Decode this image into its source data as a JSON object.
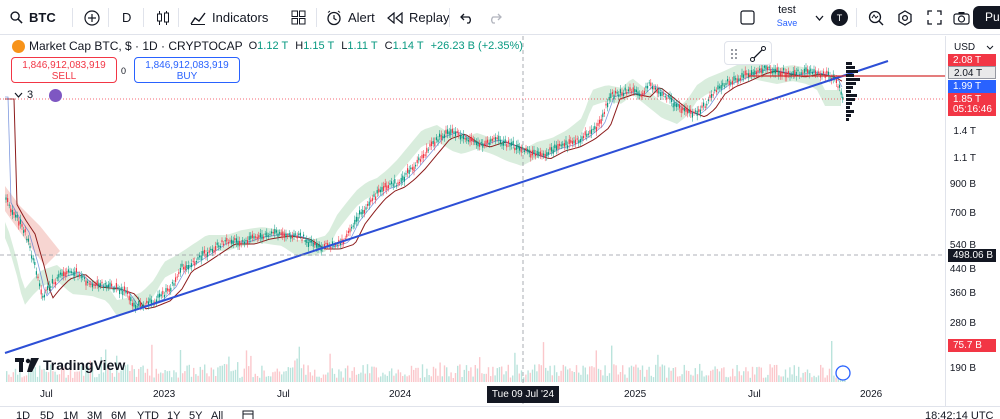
{
  "toolbar": {
    "symbol": "BTC",
    "interval": "D",
    "indicators_label": "Indicators",
    "alert_label": "Alert",
    "replay_label": "Replay",
    "layout_name": "test",
    "save_label": "Save",
    "avatar_letter": "T",
    "publish_label": "Pu"
  },
  "legend": {
    "title": "Market Cap BTC, $ · 1D · CRYPTOCAP",
    "open_label": "O",
    "open": "1.12 T",
    "high_label": "H",
    "high": "1.15 T",
    "low_label": "L",
    "low": "1.11 T",
    "close_label": "C",
    "close": "1.14 T",
    "change": "+26.23 B (+2.35%)"
  },
  "trade": {
    "sell_price": "1,846,912,083,919",
    "sell_label": "SELL",
    "spread": "0",
    "buy_price": "1,846,912,083,919",
    "buy_label": "BUY"
  },
  "indicators_count": "3",
  "price_axis": {
    "currency": "USD",
    "ticks": [
      "1.4 T",
      "1.1 T",
      "900 B",
      "700 B",
      "540 B",
      "440 B",
      "360 B",
      "280 B",
      "190 B"
    ],
    "labels": {
      "top": "2.08 T",
      "line_level": "2.04 T",
      "trendline": "1.99 T",
      "last_price": "1.85 T",
      "countdown": "05:16:46",
      "crosshair": "498.06 B",
      "volume": "75.7 B"
    }
  },
  "time_axis": {
    "labels": [
      "Jul",
      "2023",
      "Jul",
      "2024",
      "2025",
      "Jul",
      "2026"
    ],
    "cursor": "Tue 09 Jul '24"
  },
  "bottom": {
    "ranges": [
      "1D",
      "5D",
      "1M",
      "3M",
      "6M",
      "YTD",
      "1Y",
      "5Y",
      "All"
    ],
    "clock": "18:42:14 UTC"
  },
  "logo_text": "TradingView",
  "colors": {
    "up": "#089981",
    "down": "#f23645",
    "accent": "#2962ff",
    "trendline": "#2d4fd6",
    "cloud_bull": "#cfe8d4",
    "cloud_bear": "#f6d0cc"
  },
  "icons": [
    "search-icon",
    "add-symbol-icon",
    "candles-icon",
    "indicators-icon",
    "layouts-icon",
    "alert-icon",
    "replay-icon",
    "undo-icon",
    "redo-icon",
    "fullscreen-square-icon",
    "chevron-down-icon",
    "loupe-icon",
    "gear-icon",
    "fullscreen-icon",
    "camera-icon",
    "drag-handle-icon",
    "trend-tool-icon",
    "calendar-icon"
  ]
}
